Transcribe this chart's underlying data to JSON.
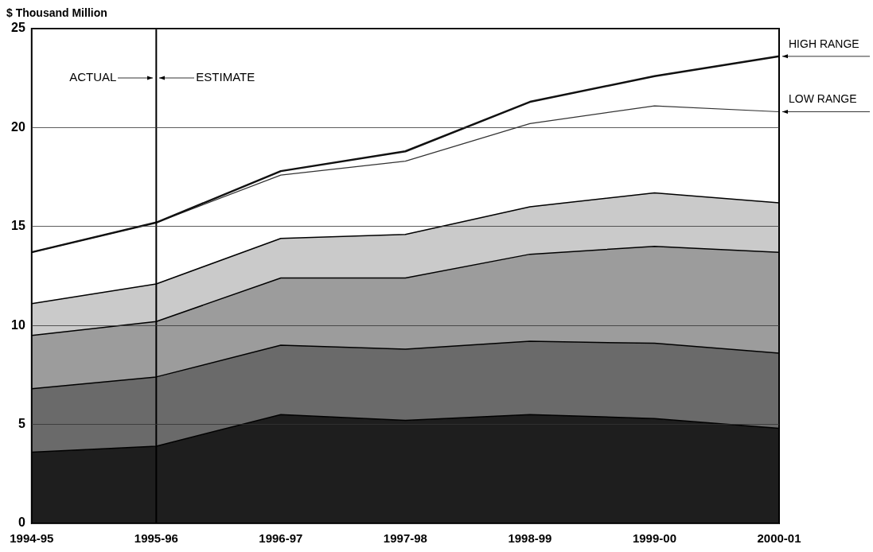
{
  "chart_data": {
    "type": "area",
    "stacked": true,
    "ylabel": "$ Thousand Million",
    "categories": [
      "1994-95",
      "1995-96",
      "1996-97",
      "1997-98",
      "1998-99",
      "1999-00",
      "2000-01"
    ],
    "series": [
      {
        "color": "#1e1e1e",
        "values": [
          3.6,
          3.9,
          5.5,
          5.2,
          5.5,
          5.3,
          4.8
        ]
      },
      {
        "color": "#6a6a6a",
        "values": [
          3.2,
          3.5,
          3.5,
          3.6,
          3.7,
          3.8,
          3.8
        ]
      },
      {
        "color": "#9c9c9c",
        "values": [
          2.7,
          2.8,
          3.4,
          3.6,
          4.4,
          4.9,
          5.1
        ]
      },
      {
        "color": "#cacaca",
        "values": [
          1.6,
          1.9,
          2.0,
          2.2,
          2.4,
          2.7,
          2.5
        ]
      },
      {
        "type": "line",
        "name": "HIGH RANGE",
        "color": "#111111",
        "values": [
          13.7,
          15.2,
          17.8,
          18.8,
          21.3,
          22.6,
          23.6
        ]
      },
      {
        "type": "line",
        "name": "LOW RANGE",
        "color": "#333333",
        "values": [
          13.7,
          15.2,
          17.6,
          18.3,
          20.2,
          21.1,
          20.8
        ]
      }
    ],
    "ylim": [
      0,
      25
    ],
    "yticks": [
      0,
      5,
      10,
      15,
      20,
      25
    ],
    "grid": "y",
    "legend": false,
    "marker": "none",
    "ref_lines": [
      {
        "axis": "x",
        "value": "1995-96",
        "color": "#000000"
      }
    ],
    "annotations": [
      "ACTUAL",
      "ESTIMATE"
    ]
  }
}
